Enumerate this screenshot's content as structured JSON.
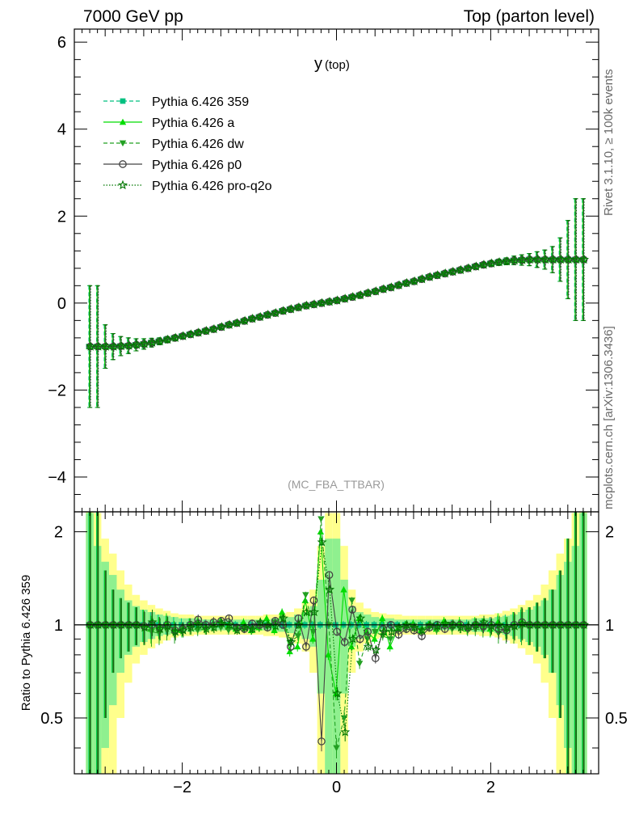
{
  "header": {
    "energy_label": "7000 GeV pp",
    "process_label": "Top (parton level)"
  },
  "side_labels": {
    "rivet": "Rivet 3.1.10, ≥ 100k events",
    "mcplots": "mcplots.cern.ch [arXiv:1306.3436]"
  },
  "chart_data": [
    {
      "type": "line",
      "panel": "main",
      "title": "y",
      "title_sub": "(top)",
      "analysis_label": "(MC_FBA_TTBAR)",
      "xlabel": "",
      "ylabel": "",
      "xlim": [
        -3.4,
        3.4
      ],
      "ylim": [
        -4.8,
        6.3
      ],
      "yticks": [
        -4,
        -2,
        0,
        2,
        4,
        6
      ],
      "ytick_labels": [
        "−4",
        "−2",
        "0",
        "2",
        "4",
        "6"
      ],
      "legend_position": "top-left",
      "x": [
        -3.2,
        -3.1,
        -3.0,
        -2.9,
        -2.8,
        -2.7,
        -2.6,
        -2.5,
        -2.4,
        -2.3,
        -2.2,
        -2.1,
        -2.0,
        -1.9,
        -1.8,
        -1.7,
        -1.6,
        -1.5,
        -1.4,
        -1.3,
        -1.2,
        -1.1,
        -1.0,
        -0.9,
        -0.8,
        -0.7,
        -0.6,
        -0.5,
        -0.4,
        -0.3,
        -0.2,
        -0.1,
        0.0,
        0.1,
        0.2,
        0.3,
        0.4,
        0.5,
        0.6,
        0.7,
        0.8,
        0.9,
        1.0,
        1.1,
        1.2,
        1.3,
        1.4,
        1.5,
        1.6,
        1.7,
        1.8,
        1.9,
        2.0,
        2.1,
        2.2,
        2.3,
        2.4,
        2.5,
        2.6,
        2.7,
        2.8,
        2.9,
        3.0,
        3.1,
        3.2
      ],
      "series": [
        {
          "name": "Pythia 6.426 359",
          "color": "#00c080",
          "marker": "square",
          "linestyle": "dashed",
          "values": [
            -1.0,
            -1.0,
            -1.0,
            -1.0,
            -0.99,
            -0.98,
            -0.96,
            -0.94,
            -0.91,
            -0.88,
            -0.84,
            -0.8,
            -0.76,
            -0.72,
            -0.68,
            -0.64,
            -0.6,
            -0.55,
            -0.5,
            -0.46,
            -0.41,
            -0.36,
            -0.32,
            -0.27,
            -0.23,
            -0.18,
            -0.14,
            -0.1,
            -0.06,
            -0.03,
            0.0,
            0.03,
            0.06,
            0.1,
            0.14,
            0.18,
            0.23,
            0.27,
            0.32,
            0.36,
            0.41,
            0.46,
            0.5,
            0.55,
            0.6,
            0.64,
            0.68,
            0.72,
            0.76,
            0.8,
            0.84,
            0.88,
            0.91,
            0.94,
            0.96,
            0.98,
            0.99,
            1.0,
            1.0,
            1.0,
            1.0,
            1.0,
            1.0,
            1.0,
            1.0
          ]
        },
        {
          "name": "Pythia 6.426 a",
          "color": "#00dd00",
          "marker": "triangle-up",
          "linestyle": "solid",
          "values": [
            -1.0,
            -1.0,
            -1.0,
            -1.0,
            -0.99,
            -0.98,
            -0.96,
            -0.94,
            -0.91,
            -0.88,
            -0.84,
            -0.8,
            -0.76,
            -0.72,
            -0.68,
            -0.64,
            -0.6,
            -0.55,
            -0.5,
            -0.46,
            -0.41,
            -0.36,
            -0.32,
            -0.27,
            -0.23,
            -0.18,
            -0.14,
            -0.1,
            -0.06,
            -0.03,
            0.0,
            0.03,
            0.06,
            0.1,
            0.14,
            0.18,
            0.23,
            0.27,
            0.32,
            0.36,
            0.41,
            0.46,
            0.5,
            0.55,
            0.6,
            0.64,
            0.68,
            0.72,
            0.76,
            0.8,
            0.84,
            0.88,
            0.91,
            0.94,
            0.96,
            0.98,
            0.99,
            1.0,
            1.0,
            1.0,
            1.0,
            1.0,
            1.0,
            1.0,
            1.0
          ]
        },
        {
          "name": "Pythia 6.426 dw",
          "color": "#22a022",
          "marker": "triangle-down",
          "linestyle": "dashed",
          "values": [
            -1.0,
            -1.0,
            -1.0,
            -1.0,
            -0.99,
            -0.98,
            -0.96,
            -0.94,
            -0.91,
            -0.88,
            -0.84,
            -0.8,
            -0.76,
            -0.72,
            -0.68,
            -0.64,
            -0.6,
            -0.55,
            -0.5,
            -0.46,
            -0.41,
            -0.36,
            -0.32,
            -0.27,
            -0.23,
            -0.18,
            -0.14,
            -0.1,
            -0.06,
            -0.03,
            0.0,
            0.03,
            0.06,
            0.1,
            0.14,
            0.18,
            0.23,
            0.27,
            0.32,
            0.36,
            0.41,
            0.46,
            0.5,
            0.55,
            0.6,
            0.64,
            0.68,
            0.72,
            0.76,
            0.8,
            0.84,
            0.88,
            0.91,
            0.94,
            0.96,
            0.98,
            0.99,
            1.0,
            1.0,
            1.0,
            1.0,
            1.0,
            1.0,
            1.0,
            1.0
          ]
        },
        {
          "name": "Pythia 6.426 p0",
          "color": "#444444",
          "marker": "circle-open",
          "linestyle": "solid",
          "values": [
            -1.0,
            -1.0,
            -1.0,
            -1.0,
            -0.99,
            -0.98,
            -0.96,
            -0.94,
            -0.91,
            -0.88,
            -0.84,
            -0.8,
            -0.76,
            -0.72,
            -0.68,
            -0.64,
            -0.6,
            -0.55,
            -0.5,
            -0.46,
            -0.41,
            -0.36,
            -0.32,
            -0.27,
            -0.23,
            -0.18,
            -0.14,
            -0.1,
            -0.06,
            -0.03,
            0.0,
            0.03,
            0.06,
            0.1,
            0.14,
            0.18,
            0.23,
            0.27,
            0.32,
            0.36,
            0.41,
            0.46,
            0.5,
            0.55,
            0.6,
            0.64,
            0.68,
            0.72,
            0.76,
            0.8,
            0.84,
            0.88,
            0.91,
            0.94,
            0.96,
            0.98,
            0.99,
            1.0,
            1.0,
            1.0,
            1.0,
            1.0,
            1.0,
            1.0,
            1.0
          ]
        },
        {
          "name": "Pythia 6.426 pro-q2o",
          "color": "#007700",
          "marker": "star-open",
          "linestyle": "dotted",
          "values": [
            -1.0,
            -1.0,
            -1.0,
            -1.0,
            -0.99,
            -0.98,
            -0.96,
            -0.94,
            -0.91,
            -0.88,
            -0.84,
            -0.8,
            -0.76,
            -0.72,
            -0.68,
            -0.64,
            -0.6,
            -0.55,
            -0.5,
            -0.46,
            -0.41,
            -0.36,
            -0.32,
            -0.27,
            -0.23,
            -0.18,
            -0.14,
            -0.1,
            -0.06,
            -0.03,
            0.0,
            0.03,
            0.06,
            0.1,
            0.14,
            0.18,
            0.23,
            0.27,
            0.32,
            0.36,
            0.41,
            0.46,
            0.5,
            0.55,
            0.6,
            0.64,
            0.68,
            0.72,
            0.76,
            0.8,
            0.84,
            0.88,
            0.91,
            0.94,
            0.96,
            0.98,
            0.99,
            1.0,
            1.0,
            1.0,
            1.0,
            1.0,
            1.0,
            1.0,
            1.0
          ]
        }
      ],
      "errors": [
        1.4,
        1.4,
        0.5,
        0.3,
        0.22,
        0.18,
        0.14,
        0.12,
        0.1,
        0.08,
        0.07,
        0.06,
        0.05,
        0.05,
        0.04,
        0.04,
        0.04,
        0.03,
        0.03,
        0.03,
        0.03,
        0.03,
        0.03,
        0.03,
        0.03,
        0.03,
        0.03,
        0.03,
        0.03,
        0.03,
        0.03,
        0.03,
        0.03,
        0.03,
        0.03,
        0.03,
        0.03,
        0.03,
        0.03,
        0.03,
        0.03,
        0.03,
        0.03,
        0.03,
        0.03,
        0.03,
        0.03,
        0.04,
        0.04,
        0.04,
        0.05,
        0.05,
        0.06,
        0.07,
        0.08,
        0.1,
        0.12,
        0.14,
        0.18,
        0.22,
        0.3,
        0.5,
        0.9,
        1.4,
        1.4
      ]
    },
    {
      "type": "line",
      "panel": "ratio",
      "ylabel": "Ratio to Pythia 6.426 359",
      "xlabel": "",
      "xlim": [
        -3.4,
        3.4
      ],
      "ylim": [
        0.33,
        2.32
      ],
      "xticks": [
        -2,
        0,
        2
      ],
      "xtick_labels": [
        "−2",
        "0",
        "2"
      ],
      "yticks": [
        0.5,
        1,
        2
      ],
      "ytick_labels": [
        "0.5",
        "1",
        "2"
      ],
      "reference": 1.0,
      "band_inner_halfwidth": [
        1.3,
        0.8,
        0.6,
        0.45,
        0.3,
        0.2,
        0.15,
        0.12,
        0.1,
        0.08,
        0.07,
        0.06,
        0.05,
        0.05,
        0.05,
        0.04,
        0.04,
        0.04,
        0.04,
        0.04,
        0.04,
        0.04,
        0.04,
        0.04,
        0.05,
        0.05,
        0.06,
        0.08,
        0.1,
        0.15,
        0.4,
        0.9,
        0.9,
        0.4,
        0.15,
        0.1,
        0.08,
        0.06,
        0.05,
        0.05,
        0.04,
        0.04,
        0.04,
        0.04,
        0.04,
        0.04,
        0.04,
        0.04,
        0.04,
        0.04,
        0.05,
        0.05,
        0.05,
        0.06,
        0.07,
        0.08,
        0.1,
        0.12,
        0.15,
        0.2,
        0.3,
        0.45,
        0.6,
        0.8,
        1.3
      ],
      "band_outer_halfwidth": [
        1.8,
        1.3,
        0.9,
        0.7,
        0.5,
        0.35,
        0.25,
        0.2,
        0.16,
        0.13,
        0.11,
        0.09,
        0.08,
        0.08,
        0.07,
        0.07,
        0.07,
        0.07,
        0.07,
        0.07,
        0.07,
        0.07,
        0.07,
        0.08,
        0.08,
        0.09,
        0.1,
        0.13,
        0.18,
        0.3,
        0.8,
        1.3,
        1.3,
        0.8,
        0.3,
        0.18,
        0.13,
        0.1,
        0.09,
        0.08,
        0.08,
        0.07,
        0.07,
        0.07,
        0.07,
        0.07,
        0.07,
        0.07,
        0.07,
        0.07,
        0.07,
        0.08,
        0.08,
        0.09,
        0.11,
        0.13,
        0.16,
        0.2,
        0.25,
        0.35,
        0.5,
        0.7,
        0.9,
        1.3,
        1.8
      ],
      "series": [
        {
          "name": "Pythia 6.426 359",
          "values": [
            1.0,
            1.0,
            1.0,
            1.0,
            1.0,
            1.0,
            1.0,
            1.0,
            1.0,
            1.0,
            1.0,
            1.0,
            1.0,
            1.0,
            1.0,
            1.0,
            1.0,
            1.0,
            1.0,
            1.0,
            1.0,
            1.0,
            1.0,
            1.0,
            1.0,
            1.0,
            1.0,
            1.0,
            1.0,
            1.0,
            1.0,
            1.0,
            1.0,
            1.0,
            1.0,
            1.0,
            1.0,
            1.0,
            1.0,
            1.0,
            1.0,
            1.0,
            1.0,
            1.0,
            1.0,
            1.0,
            1.0,
            1.0,
            1.0,
            1.0,
            1.0,
            1.0,
            1.0,
            1.0,
            1.0,
            1.0,
            1.0,
            1.0,
            1.0,
            1.0,
            1.0,
            1.0,
            1.0,
            1.0,
            1.0
          ]
        },
        {
          "name": "Pythia 6.426 a",
          "values": [
            1.0,
            1.0,
            1.0,
            1.0,
            1.0,
            1.0,
            1.0,
            1.0,
            0.97,
            0.98,
            1.02,
            0.97,
            0.96,
            1.0,
            1.02,
            0.98,
            1.0,
            1.03,
            0.99,
            0.97,
            1.02,
            0.96,
            0.98,
            1.05,
            0.96,
            1.1,
            0.82,
            0.85,
            1.2,
            0.9,
            2.0,
            0.8,
            0.6,
            1.3,
            0.85,
            1.05,
            0.95,
            0.9,
            1.05,
            0.85,
            0.97,
            1.0,
            1.01,
            0.96,
            1.0,
            0.97,
            1.03,
            0.99,
            1.02,
            0.97,
            1.01,
            1.0,
            0.97,
            1.02,
            0.98,
            1.0,
            1.02,
            1.0,
            1.0,
            1.0,
            1.0,
            1.0,
            1.0,
            1.0,
            1.0
          ]
        },
        {
          "name": "Pythia 6.426 dw",
          "values": [
            1.0,
            1.0,
            1.0,
            1.0,
            1.0,
            1.0,
            1.0,
            0.98,
            0.95,
            0.94,
            0.96,
            0.93,
            0.97,
            0.98,
            0.96,
            0.97,
            0.99,
            0.98,
            0.96,
            0.98,
            0.97,
            0.96,
            0.98,
            0.99,
            1.02,
            1.05,
            0.88,
            0.92,
            1.25,
            0.95,
            2.2,
            1.0,
            0.4,
            0.5,
            1.2,
            0.75,
            0.9,
            0.95,
            0.92,
            0.9,
            0.98,
            0.97,
            0.99,
            0.96,
            0.98,
            0.96,
            0.99,
            0.97,
            0.98,
            0.96,
            0.97,
            0.96,
            0.98,
            0.94,
            0.95,
            0.97,
            0.98,
            1.0,
            1.0,
            1.0,
            1.0,
            1.0,
            1.0,
            1.0,
            1.0
          ]
        },
        {
          "name": "Pythia 6.426 p0",
          "values": [
            1.0,
            1.0,
            1.0,
            1.0,
            1.0,
            1.0,
            1.0,
            0.99,
            1.0,
            0.98,
            1.0,
            0.96,
            0.97,
            1.0,
            1.04,
            1.0,
            1.02,
            1.03,
            1.05,
            0.98,
            0.97,
            1.01,
            1.0,
            0.98,
            1.03,
            1.0,
            0.85,
            1.05,
            0.85,
            1.2,
            0.42,
            1.45,
            0.95,
            0.88,
            1.12,
            0.9,
            0.95,
            0.78,
            0.97,
            1.0,
            0.93,
            0.97,
            0.96,
            0.92,
            0.98,
            1.0,
            0.97,
            1.0,
            1.0,
            0.98,
            1.0,
            0.99,
            1.0,
            0.97,
            0.96,
            1.0,
            1.02,
            1.0,
            1.0,
            1.0,
            1.0,
            1.0,
            1.0,
            1.0,
            1.0
          ]
        },
        {
          "name": "Pythia 6.426 pro-q2o",
          "values": [
            1.0,
            1.0,
            1.0,
            1.0,
            1.0,
            1.0,
            1.0,
            0.98,
            1.02,
            0.97,
            0.99,
            0.95,
            0.96,
            0.98,
            1.0,
            0.97,
            0.98,
            1.01,
            1.0,
            0.96,
            0.98,
            0.97,
            1.02,
            1.0,
            0.99,
            1.05,
            0.88,
            1.0,
            1.1,
            1.1,
            1.85,
            1.3,
            0.6,
            0.45,
            0.9,
            1.05,
            0.85,
            0.83,
            0.95,
            0.95,
            0.98,
            1.0,
            0.98,
            0.96,
            1.0,
            0.99,
            1.01,
            1.0,
            0.98,
            0.99,
            1.0,
            1.02,
            0.99,
            1.0,
            0.98,
            0.99,
            1.01,
            1.0,
            1.0,
            1.0,
            1.0,
            1.0,
            1.0,
            1.0,
            1.0
          ]
        }
      ]
    }
  ]
}
